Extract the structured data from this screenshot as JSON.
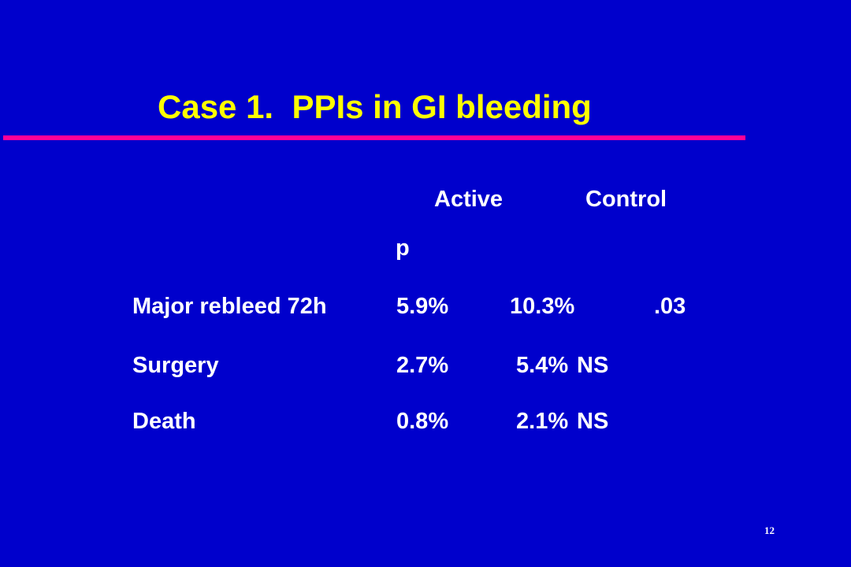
{
  "slide": {
    "title": "Case 1.  PPIs in GI bleeding",
    "slide_number": "12"
  },
  "table": {
    "headers": {
      "active": "Active",
      "control": "Control",
      "p": "p"
    },
    "rows": [
      {
        "label": "Major rebleed 72h",
        "active": "5.9%",
        "control": "10.3%",
        "p": ".03"
      },
      {
        "label": "Surgery",
        "active": "2.7%",
        "control": " 5.4%",
        "p": "NS"
      },
      {
        "label": "Death",
        "active": "0.8%",
        "control": " 2.1%",
        "p": "NS"
      }
    ]
  },
  "colors": {
    "background": "#0000cc",
    "title": "#ffff00",
    "rule": "#ff0099",
    "text": "#ffffff"
  }
}
